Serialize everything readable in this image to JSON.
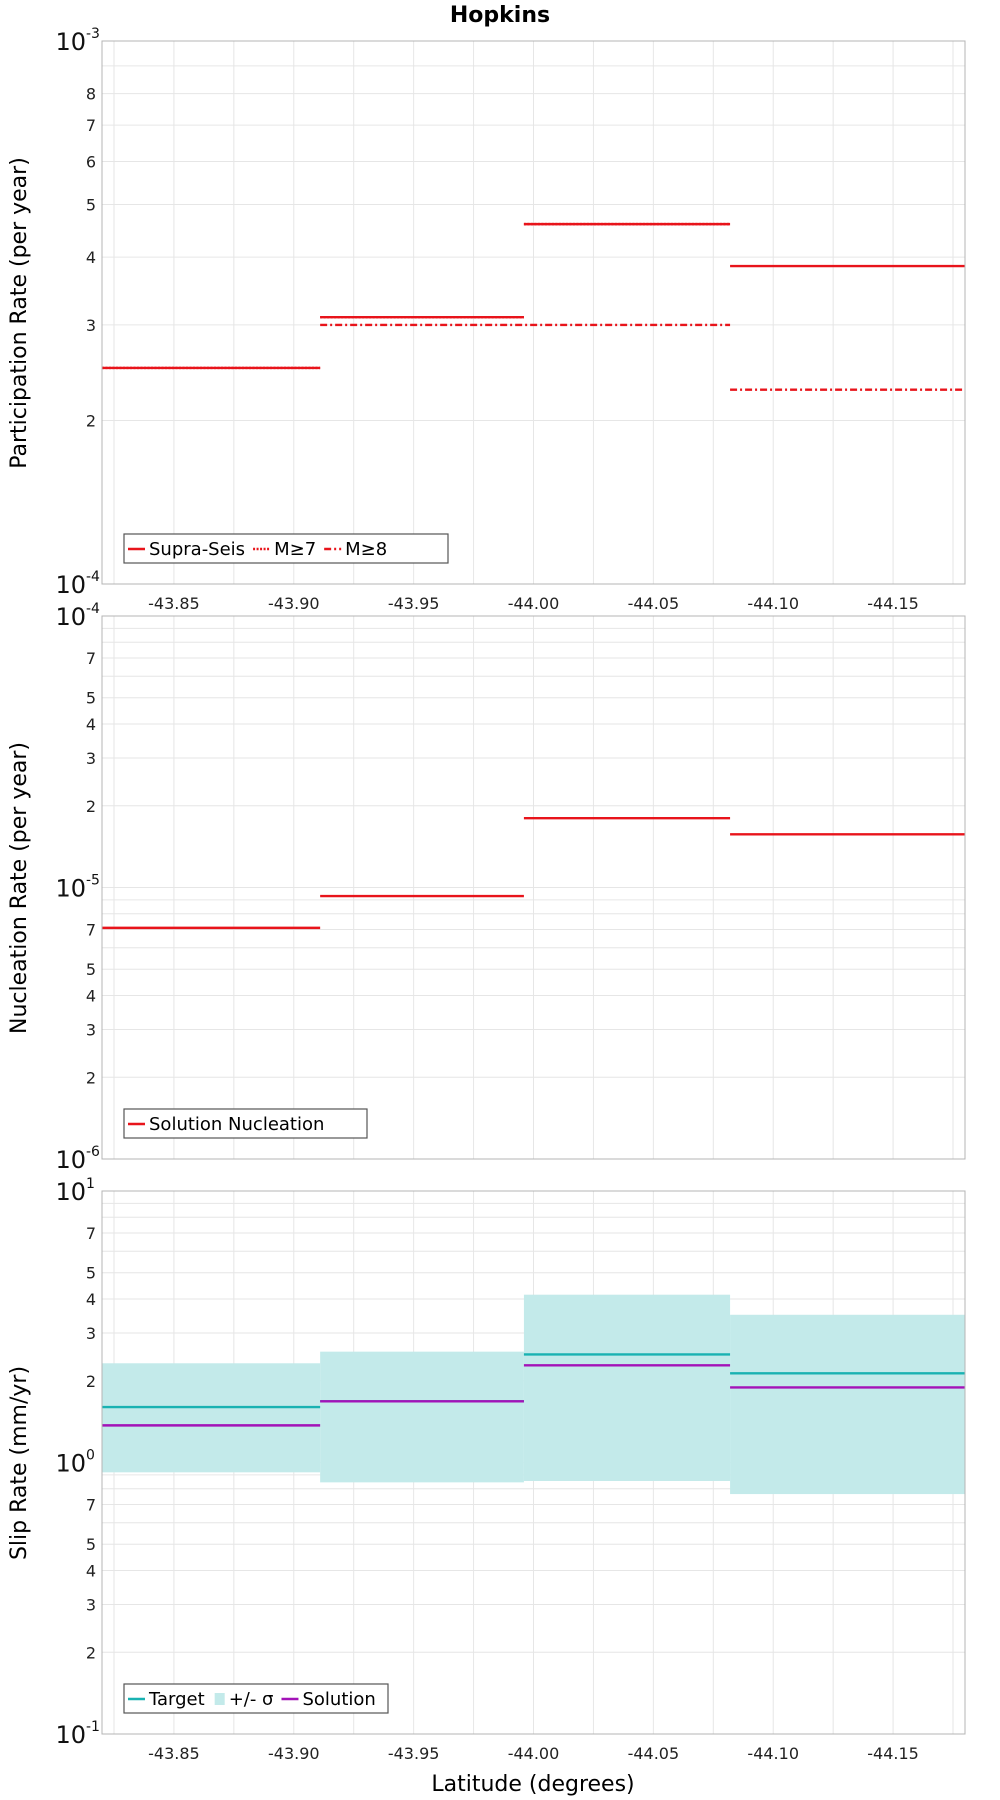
{
  "chart_data": [
    {
      "type": "line",
      "title": "Hopkins",
      "ylabel": "Participation Rate (per year)",
      "xlabel": "",
      "yscale": "log",
      "ylim": [
        0.0001,
        0.001
      ],
      "xlim": [
        -43.82,
        -44.18
      ],
      "x_ticks": [
        "-43.85",
        "-43.90",
        "-43.95",
        "-44.00",
        "-44.05",
        "-44.10",
        "-44.15"
      ],
      "y_minor_labels": [
        "2",
        "3",
        "4",
        "5",
        "6",
        "7",
        "8"
      ],
      "y_decade_labels": [
        {
          "base": "10",
          "exp": "-4"
        },
        {
          "base": "10",
          "exp": "-3"
        }
      ],
      "legend": {
        "position": "bottom-left",
        "entries": [
          {
            "label": "Supra-Seis",
            "style": "solid",
            "color": "#e8141b"
          },
          {
            "label": "M≥7",
            "style": "dotted",
            "color": "#e8141b"
          },
          {
            "label": "M≥8",
            "style": "dashdot",
            "color": "#e8141b"
          }
        ]
      },
      "series": [
        {
          "name": "Supra-Seis",
          "style": "solid",
          "color": "#e8141b",
          "segments": [
            {
              "x0": -43.82,
              "x1": -43.911,
              "y": 0.00025
            },
            {
              "x0": -43.911,
              "x1": -43.996,
              "y": 0.00031
            },
            {
              "x0": -43.996,
              "x1": -44.082,
              "y": 0.00046
            },
            {
              "x0": -44.082,
              "x1": -44.18,
              "y": 0.000385
            }
          ]
        },
        {
          "name": "M≥7",
          "style": "dotted",
          "color": "#e8141b",
          "segments": [
            {
              "x0": -43.82,
              "x1": -43.911,
              "y": 0.00025
            },
            {
              "x0": -43.911,
              "x1": -43.996,
              "y": 0.00031
            },
            {
              "x0": -43.996,
              "x1": -44.082,
              "y": 0.00046
            }
          ]
        },
        {
          "name": "M≥8",
          "style": "dashdot",
          "color": "#e8141b",
          "segments": [
            {
              "x0": -43.911,
              "x1": -44.082,
              "y": 0.0003
            },
            {
              "x0": -44.082,
              "x1": -44.18,
              "y": 0.000228
            }
          ]
        }
      ]
    },
    {
      "type": "line",
      "title": "",
      "ylabel": "Nucleation Rate (per year)",
      "xlabel": "",
      "yscale": "log",
      "ylim": [
        1e-06,
        0.0001
      ],
      "xlim": [
        -43.82,
        -44.18
      ],
      "x_ticks": [],
      "y_minor_labels": [
        "2",
        "3",
        "4",
        "5",
        "7",
        "2",
        "3",
        "4",
        "5",
        "7"
      ],
      "y_decade_labels": [
        {
          "base": "10",
          "exp": "-6"
        },
        {
          "base": "10",
          "exp": "-5"
        },
        {
          "base": "10",
          "exp": "-4"
        }
      ],
      "legend": {
        "position": "bottom-left",
        "entries": [
          {
            "label": "Solution Nucleation",
            "style": "solid",
            "color": "#e8141b"
          }
        ]
      },
      "series": [
        {
          "name": "Solution Nucleation",
          "style": "solid",
          "color": "#e8141b",
          "segments": [
            {
              "x0": -43.82,
              "x1": -43.911,
              "y": 7.1e-06
            },
            {
              "x0": -43.911,
              "x1": -43.996,
              "y": 9.3e-06
            },
            {
              "x0": -43.996,
              "x1": -44.082,
              "y": 1.8e-05
            },
            {
              "x0": -44.082,
              "x1": -44.18,
              "y": 1.57e-05
            }
          ]
        }
      ]
    },
    {
      "type": "area",
      "title": "",
      "ylabel": "Slip Rate (mm/yr)",
      "xlabel": "Latitude (degrees)",
      "yscale": "log",
      "ylim": [
        0.1,
        10
      ],
      "xlim": [
        -43.82,
        -44.18
      ],
      "x_ticks": [
        "-43.85",
        "-43.90",
        "-43.95",
        "-44.00",
        "-44.05",
        "-44.10",
        "-44.15"
      ],
      "y_minor_labels": [
        "2",
        "3",
        "4",
        "5",
        "7",
        "2",
        "3",
        "4",
        "5",
        "7"
      ],
      "y_decade_labels": [
        {
          "base": "10",
          "exp": "-1"
        },
        {
          "base": "10",
          "exp": "0"
        },
        {
          "base": "10",
          "exp": "1"
        }
      ],
      "legend": {
        "position": "bottom-left",
        "entries": [
          {
            "label": "Target",
            "style": "solid",
            "color": "#19b2b2"
          },
          {
            "label": "+/- σ",
            "style": "box",
            "color": "#c3eaea"
          },
          {
            "label": "Solution",
            "style": "solid",
            "color": "#a313b8"
          }
        ]
      },
      "bands": [
        {
          "name": "+/- σ",
          "color": "#c3eaea",
          "segments": [
            {
              "x0": -43.82,
              "x1": -43.911,
              "y0": 0.92,
              "y1": 2.32
            },
            {
              "x0": -43.911,
              "x1": -43.996,
              "y0": 0.845,
              "y1": 2.56
            },
            {
              "x0": -43.996,
              "x1": -44.082,
              "y0": 0.855,
              "y1": 4.15
            },
            {
              "x0": -44.082,
              "x1": -44.18,
              "y0": 0.765,
              "y1": 3.5
            }
          ]
        }
      ],
      "series": [
        {
          "name": "Target",
          "style": "solid",
          "color": "#19b2b2",
          "segments": [
            {
              "x0": -43.82,
              "x1": -43.911,
              "y": 1.6
            },
            {
              "x0": -43.911,
              "x1": -43.996,
              "y": 1.68
            },
            {
              "x0": -43.996,
              "x1": -44.082,
              "y": 2.5
            },
            {
              "x0": -44.082,
              "x1": -44.18,
              "y": 2.13
            }
          ]
        },
        {
          "name": "Solution",
          "style": "solid",
          "color": "#a313b8",
          "segments": [
            {
              "x0": -43.82,
              "x1": -43.911,
              "y": 1.37
            },
            {
              "x0": -43.911,
              "x1": -43.996,
              "y": 1.68
            },
            {
              "x0": -43.996,
              "x1": -44.082,
              "y": 2.28
            },
            {
              "x0": -44.082,
              "x1": -44.18,
              "y": 1.89
            }
          ]
        }
      ]
    }
  ]
}
